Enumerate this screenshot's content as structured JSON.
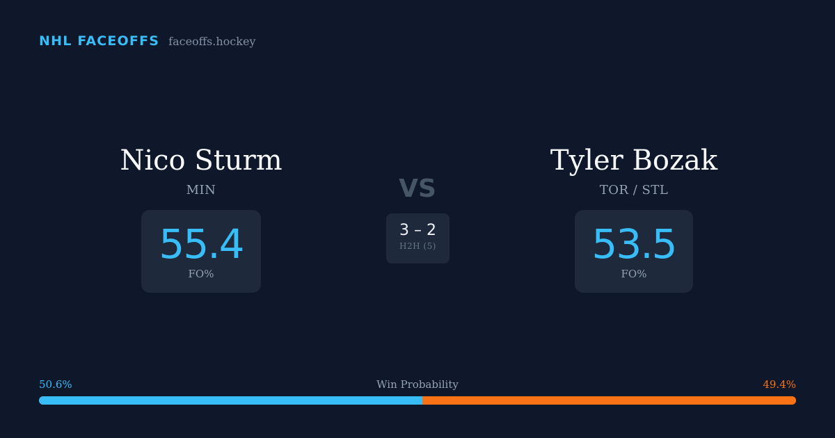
{
  "brand": {
    "name": "NHL FACEOFFS",
    "site": "faceoffs.hockey"
  },
  "player_left": {
    "name": "Nico Sturm",
    "team": "MIN",
    "stat_value": "55.4",
    "stat_label": "FO%"
  },
  "player_right": {
    "name": "Tyler Bozak",
    "team": "TOR / STL",
    "stat_value": "53.5",
    "stat_label": "FO%"
  },
  "vs_label": "VS",
  "head_to_head": {
    "score": "3 – 2",
    "label": "H2H (5)"
  },
  "win_probability": {
    "title": "Win Probability",
    "left_label": "50.6%",
    "right_label": "49.4%",
    "left_fraction": 0.506,
    "right_fraction": 0.494
  },
  "colors": {
    "background": "#0f172a",
    "card": "#1e293b",
    "accent_left": "#38bdf8",
    "accent_right": "#f97316"
  }
}
